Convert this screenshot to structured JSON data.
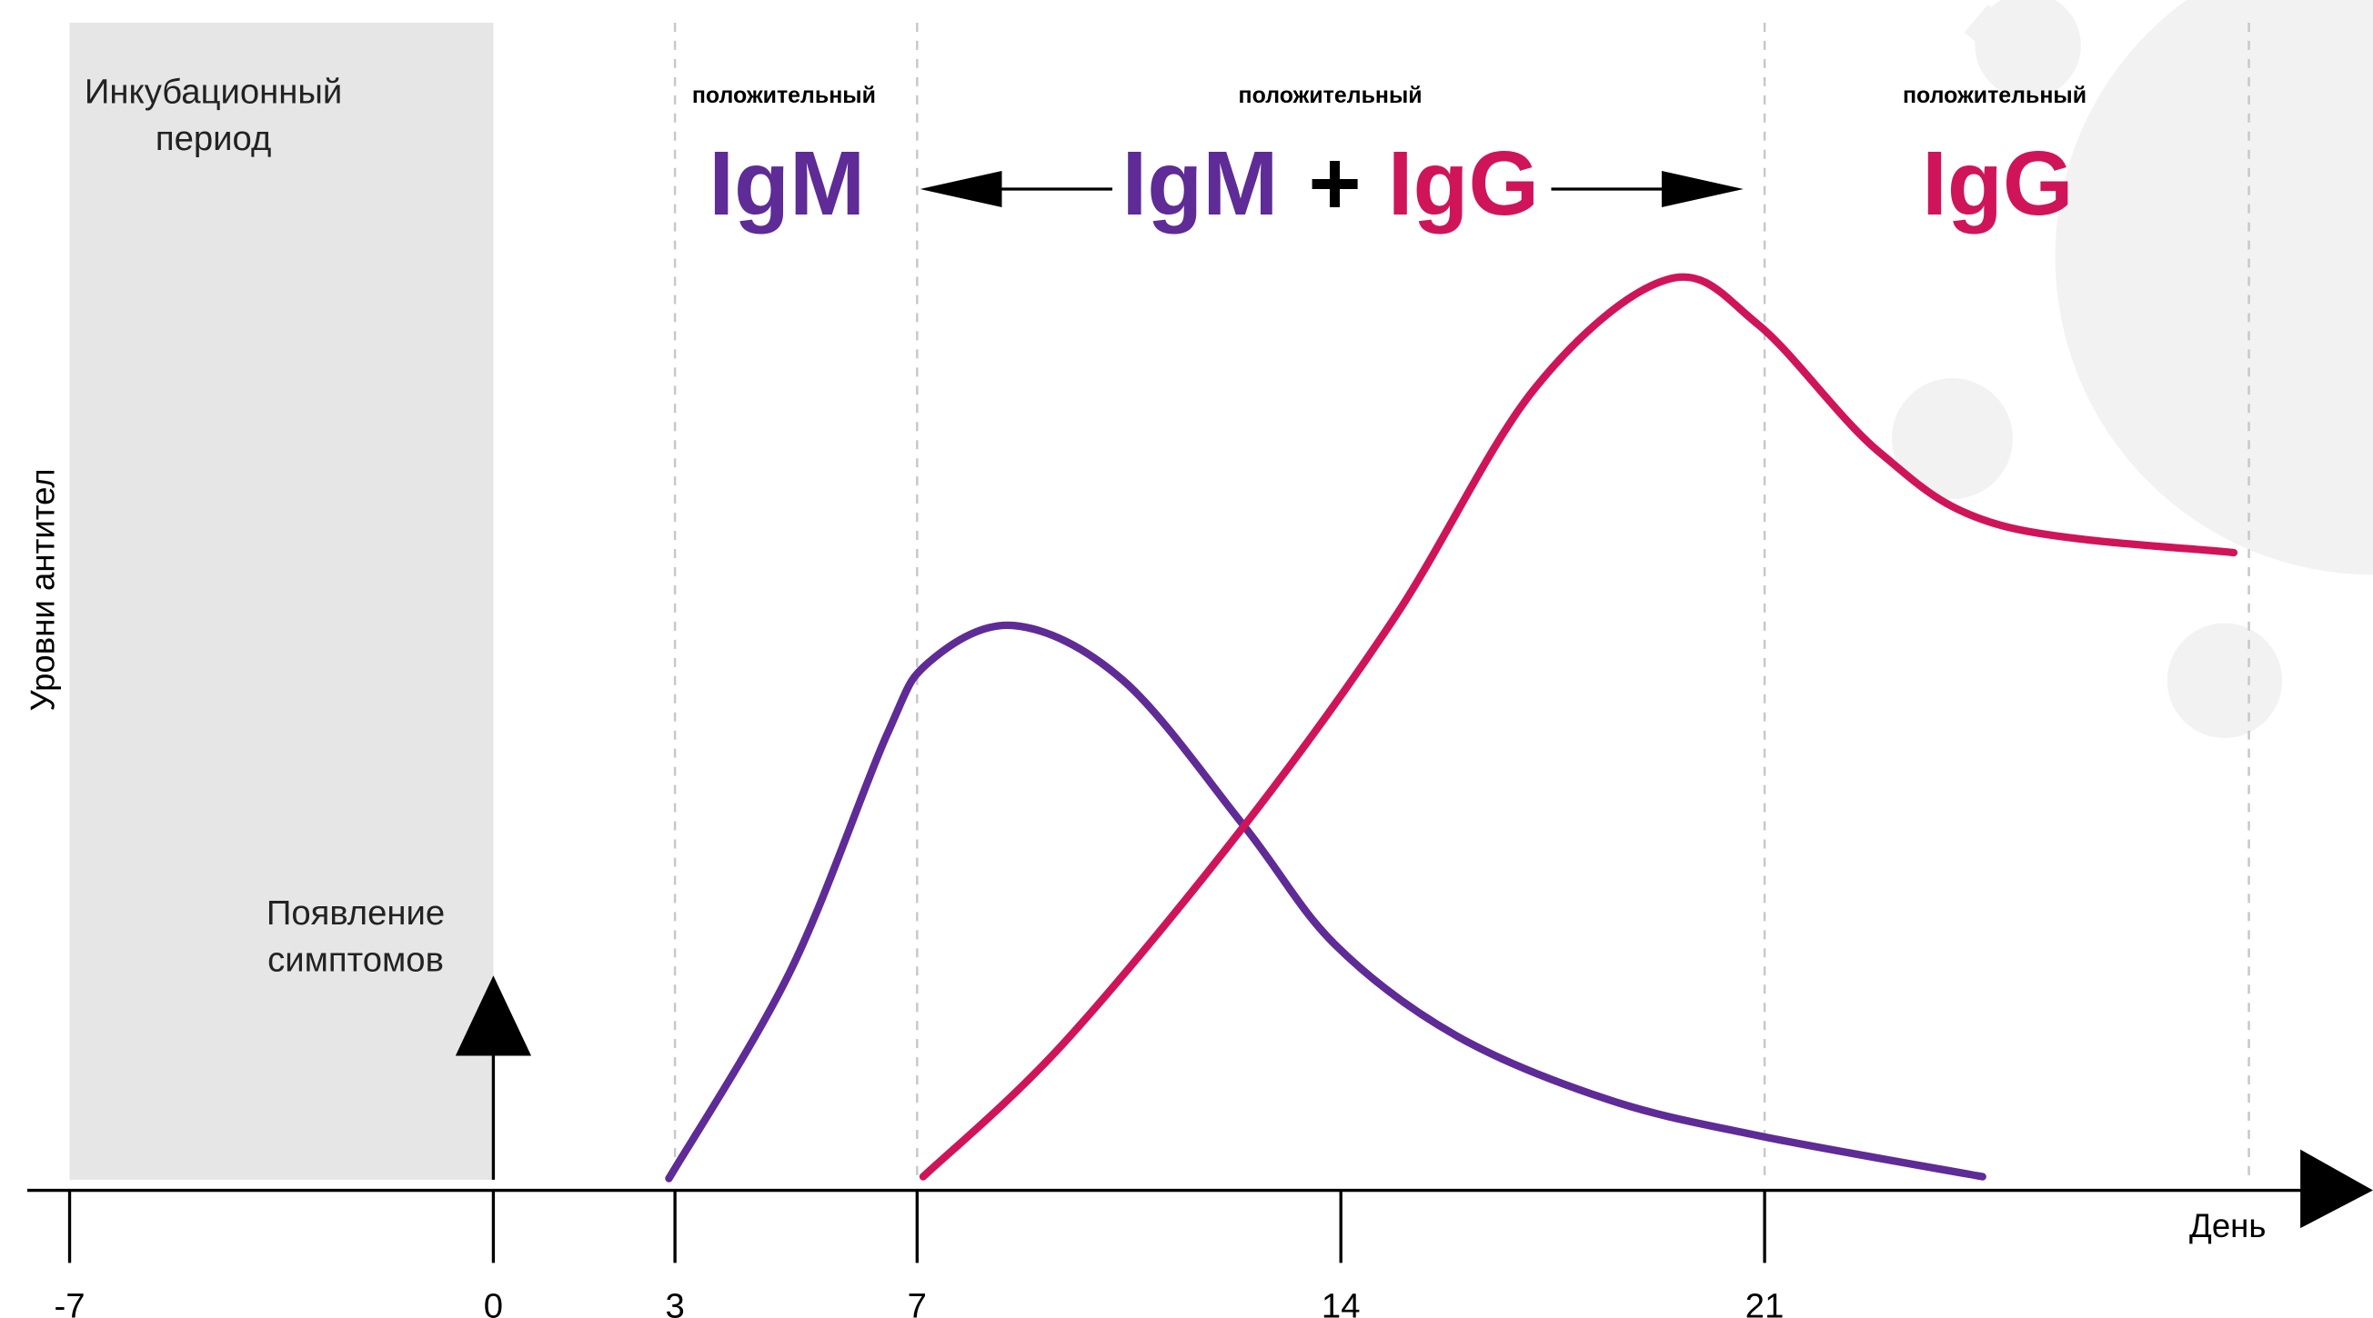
{
  "chart_data": {
    "type": "line",
    "y_label": "Уровни антител",
    "x_label": "День",
    "xlim": [
      -7.7,
      31.05
    ],
    "ylim": [
      0,
      130
    ],
    "xticks": [
      -7,
      0,
      3,
      7,
      14,
      21
    ],
    "dashed_lines": [
      3,
      7,
      21,
      29
    ],
    "shaded_span": {
      "range": [
        -7,
        0
      ],
      "label": [
        "Инкубационный",
        "период"
      ]
    },
    "event": {
      "x": 0,
      "label": [
        "Появление",
        "симптомов"
      ]
    },
    "phase_captions": [
      "положительный",
      "положительный",
      "положительный"
    ],
    "joiner": "+",
    "series": [
      {
        "name": "IgM",
        "color": "#5e2b97",
        "x": [
          2.9,
          4.9,
          6.5,
          7.2,
          8.6,
          10.4,
          12.4,
          13.9,
          15.9,
          18.4,
          20.9,
          24.6
        ],
        "values": [
          1.3,
          24,
          50,
          58,
          62,
          56,
          40,
          27,
          17,
          10,
          6,
          1.5
        ]
      },
      {
        "name": "IgG",
        "color": "#d0145a",
        "x": [
          7.1,
          9.4,
          12.4,
          14.9,
          17.2,
          19.4,
          20.9,
          22.9,
          24.9,
          28.75
        ],
        "values": [
          1.5,
          16,
          40,
          63,
          88,
          100,
          95,
          81,
          73,
          70
        ]
      }
    ]
  }
}
